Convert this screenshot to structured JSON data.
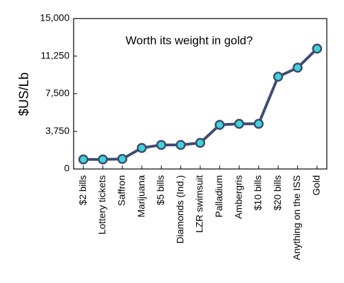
{
  "chart_data": {
    "type": "line",
    "title": "Worth its weight in gold?",
    "y_label": "$US/Lb",
    "categories": [
      "$2 bills",
      "Lottery tickets",
      "Saffron",
      "Marijuana",
      "$5 bills",
      "Diamonds (Ind.)",
      "LZR swimsuit",
      "Palladium",
      "Ambergris",
      "$10 bills",
      "$20 bills",
      "Anything on the ISS",
      "Gold"
    ],
    "values": [
      950,
      950,
      1000,
      2100,
      2400,
      2400,
      2600,
      4400,
      4500,
      4500,
      9200,
      10100,
      12000
    ],
    "color": "#3d4c72",
    "marker_color": "#3fd4d8",
    "ylim": [
      0,
      15000
    ],
    "yticks": [
      0,
      {
        "value": 3750,
        "label": "3,750"
      },
      {
        "value": 7500,
        "label": "7,500"
      },
      {
        "value": 11250,
        "label": "11,250"
      },
      {
        "value": 15000,
        "label": "15,000"
      }
    ],
    "grid": false
  }
}
